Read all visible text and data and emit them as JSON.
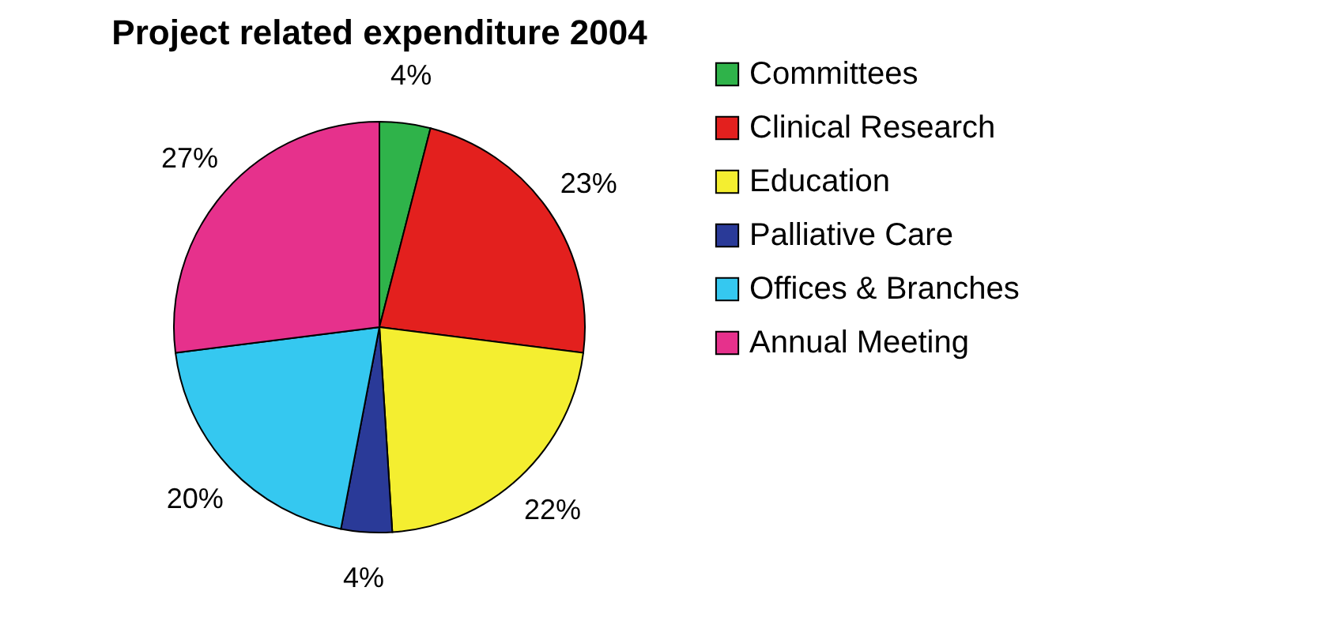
{
  "chart_data": {
    "type": "pie",
    "title": "Project related expenditure 2004",
    "categories": [
      "Committees",
      "Clinical Research",
      "Education",
      "Palliative Care",
      "Offices & Branches",
      "Annual Meeting"
    ],
    "values": [
      4,
      23,
      22,
      4,
      20,
      27
    ],
    "value_labels": [
      "4%",
      "23%",
      "22%",
      "4%",
      "20%",
      "27%"
    ],
    "colors": [
      "#2fb34a",
      "#e3201e",
      "#f4ee30",
      "#2a3a98",
      "#35c8f0",
      "#e6318c"
    ],
    "legend": "right"
  }
}
